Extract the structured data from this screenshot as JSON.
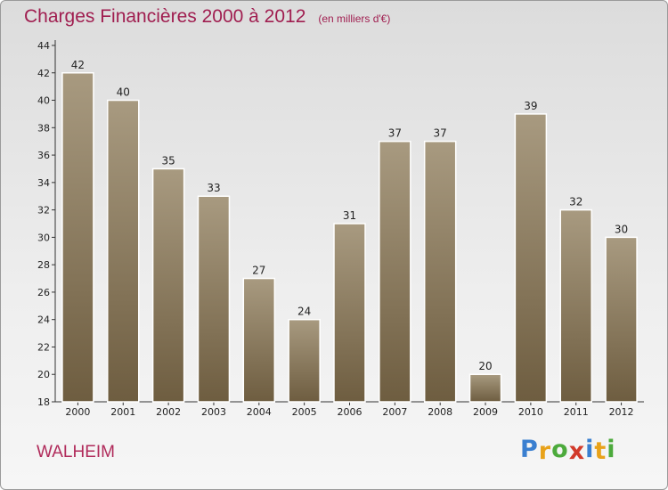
{
  "title": "Charges Financières 2000 à 2012",
  "unit": "(en milliers d'€)",
  "commune": "WALHEIM",
  "logo": {
    "letters": [
      "P",
      "r",
      "o",
      "x",
      "i",
      "t",
      "i"
    ],
    "colors": [
      "#3a7fd0",
      "#e8a21a",
      "#4caa3c",
      "#d23a2a",
      "#3a7fd0",
      "#e8a21a",
      "#4caa3c"
    ]
  },
  "colors": {
    "bar_top": "#a89a80",
    "bar_bottom": "#6e5d40",
    "title": "#a01e50"
  },
  "chart_data": {
    "type": "bar",
    "categories": [
      "2000",
      "2001",
      "2002",
      "2003",
      "2004",
      "2005",
      "2006",
      "2007",
      "2008",
      "2009",
      "2010",
      "2011",
      "2012"
    ],
    "values": [
      42,
      40,
      35,
      33,
      27,
      24,
      31,
      37,
      37,
      20,
      39,
      32,
      30
    ],
    "ylim": [
      18,
      44
    ],
    "yticks": [
      18,
      20,
      22,
      24,
      26,
      28,
      30,
      32,
      34,
      36,
      38,
      40,
      42,
      44
    ],
    "grid": false,
    "xlabel": "",
    "ylabel": ""
  }
}
